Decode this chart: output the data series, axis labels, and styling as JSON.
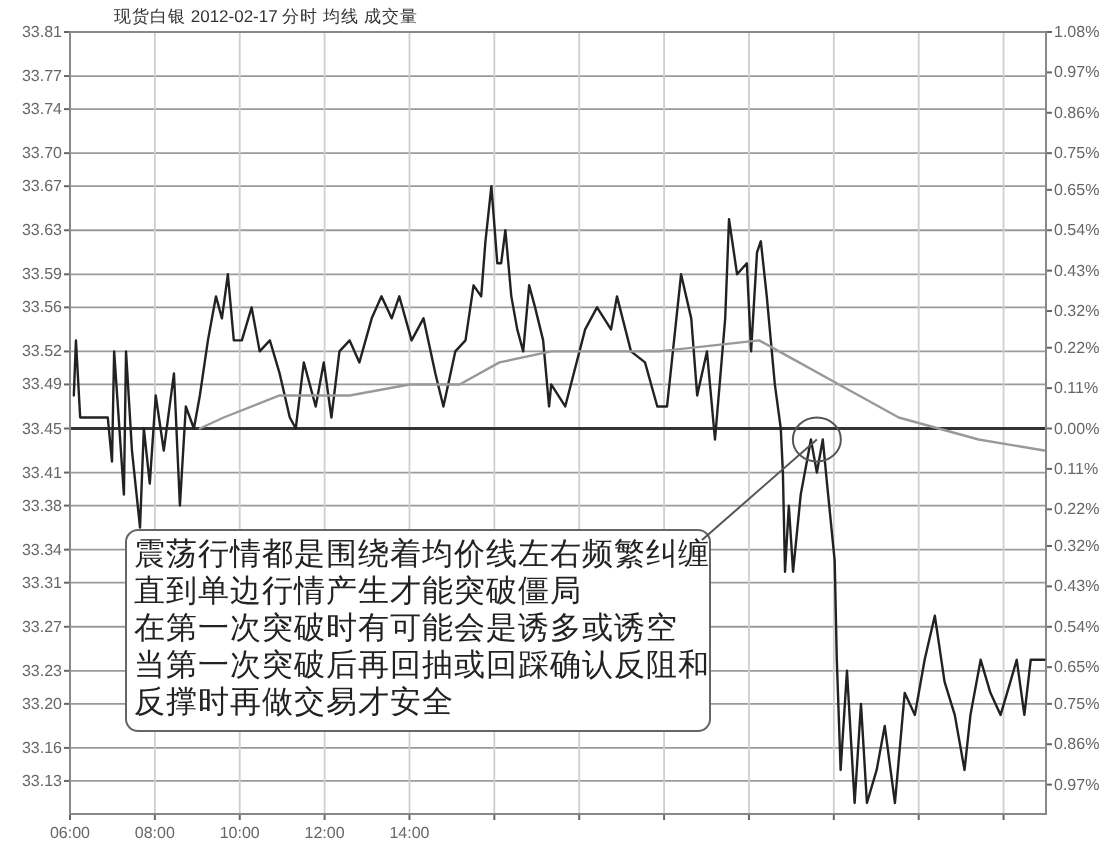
{
  "chart_data": {
    "type": "line",
    "title": "现货白银 2012-02-17 分时 均线 成交量",
    "xlim": [
      6,
      29
    ],
    "ylim": [
      33.1,
      33.81
    ],
    "y2lim": [
      -1.05,
      1.08
    ],
    "xticks": [
      {
        "value": 6,
        "label": "06:00"
      },
      {
        "value": 8,
        "label": "08:00"
      },
      {
        "value": 10,
        "label": "10:00"
      },
      {
        "value": 12,
        "label": "12:00"
      },
      {
        "value": 14,
        "label": "14:00"
      },
      {
        "value": 16,
        "label": null
      },
      {
        "value": 18,
        "label": null
      },
      {
        "value": 20,
        "label": null
      },
      {
        "value": 22,
        "label": null
      },
      {
        "value": 24,
        "label": null
      },
      {
        "value": 26,
        "label": null
      },
      {
        "value": 28,
        "label": null
      }
    ],
    "yticks": [
      33.13,
      33.16,
      {
        "value": 33.2,
        "label": "33.20"
      },
      33.23,
      33.27,
      33.31,
      33.34,
      33.38,
      33.41,
      33.45,
      33.49,
      33.52,
      33.56,
      33.59,
      33.63,
      33.67,
      {
        "value": 33.7,
        "label": "33.70"
      },
      33.74,
      33.77,
      33.81
    ],
    "y2ticks": [
      {
        "value": -0.97,
        "label": "0.97%"
      },
      {
        "value": -0.86,
        "label": "0.86%"
      },
      {
        "value": -0.75,
        "label": "0.75%"
      },
      {
        "value": -0.65,
        "label": "0.65%"
      },
      {
        "value": -0.54,
        "label": "0.54%"
      },
      {
        "value": -0.43,
        "label": "0.43%"
      },
      {
        "value": -0.32,
        "label": "0.32%"
      },
      {
        "value": -0.22,
        "label": "0.22%"
      },
      {
        "value": -0.11,
        "label": "0.11%"
      },
      {
        "value": 0,
        "label": "0.00%"
      },
      {
        "value": 0.11,
        "label": "0.11%"
      },
      {
        "value": 0.22,
        "label": "0.22%"
      },
      {
        "value": 0.32,
        "label": "0.32%"
      },
      {
        "value": 0.43,
        "label": "0.43%"
      },
      {
        "value": 0.54,
        "label": "0.54%"
      },
      {
        "value": 0.65,
        "label": "0.65%"
      },
      {
        "value": 0.75,
        "label": "0.75%"
      },
      {
        "value": 0.86,
        "label": "0.86%"
      },
      {
        "value": 0.97,
        "label": "0.97%"
      },
      {
        "value": 1.08,
        "label": "1.08%"
      }
    ],
    "grid": true,
    "ref_lines": [
      {
        "axis": "y",
        "value": 33.45,
        "color": "#333333"
      }
    ],
    "series": [
      {
        "color": "#222222",
        "x": [
          6.09,
          6.14,
          6.24,
          6.89,
          6.99,
          7.04,
          7.27,
          7.32,
          7.46,
          7.65,
          7.74,
          7.88,
          8.02,
          8.21,
          8.45,
          8.59,
          8.73,
          8.92,
          9.06,
          9.25,
          9.44,
          9.58,
          9.72,
          9.86,
          10.05,
          10.28,
          10.47,
          10.71,
          10.94,
          11.18,
          11.32,
          11.51,
          11.79,
          11.98,
          12.16,
          12.35,
          12.59,
          12.82,
          13.11,
          13.34,
          13.58,
          13.76,
          14.05,
          14.33,
          14.61,
          14.8,
          15.08,
          15.32,
          15.51,
          15.69,
          15.79,
          15.93,
          16.07,
          16.16,
          16.26,
          16.4,
          16.54,
          16.68,
          16.82,
          16.96,
          17.15,
          17.29,
          17.34,
          17.67,
          18.14,
          18.42,
          18.75,
          18.89,
          19.22,
          19.55,
          19.84,
          20.07,
          20.4,
          20.64,
          20.78,
          21.01,
          21.2,
          21.44,
          21.53,
          21.72,
          21.95,
          22.05,
          22.19,
          22.28,
          22.42,
          22.61,
          22.75,
          22.8,
          22.85,
          22.94,
          23.04,
          23.22,
          23.46,
          23.6,
          23.74,
          23.84,
          24.02,
          24.07,
          24.16,
          24.31,
          24.49,
          24.64,
          24.78,
          25.01,
          25.2,
          25.44,
          25.67,
          25.91,
          26.14,
          26.38,
          26.61,
          26.85,
          27.08,
          27.22,
          27.46,
          27.69,
          27.93,
          28.16,
          28.31,
          28.49,
          28.64,
          28.96
        ],
        "values": [
          33.48,
          33.53,
          33.46,
          33.46,
          33.42,
          33.52,
          33.39,
          33.52,
          33.43,
          33.36,
          33.45,
          33.4,
          33.48,
          33.43,
          33.5,
          33.38,
          33.47,
          33.45,
          33.48,
          33.53,
          33.57,
          33.55,
          33.59,
          33.53,
          33.53,
          33.56,
          33.52,
          33.53,
          33.5,
          33.46,
          33.45,
          33.51,
          33.47,
          33.51,
          33.46,
          33.52,
          33.53,
          33.51,
          33.55,
          33.57,
          33.55,
          33.57,
          33.53,
          33.55,
          33.5,
          33.47,
          33.52,
          33.53,
          33.58,
          33.57,
          33.62,
          33.67,
          33.6,
          33.6,
          33.63,
          33.57,
          33.54,
          33.52,
          33.58,
          33.56,
          33.53,
          33.47,
          33.49,
          33.47,
          33.54,
          33.56,
          33.54,
          33.57,
          33.52,
          33.51,
          33.47,
          33.47,
          33.59,
          33.55,
          33.48,
          33.52,
          33.44,
          33.55,
          33.64,
          33.59,
          33.6,
          33.52,
          33.61,
          33.62,
          33.57,
          33.49,
          33.45,
          33.41,
          33.32,
          33.38,
          33.32,
          33.39,
          33.44,
          33.41,
          33.44,
          33.4,
          33.33,
          33.24,
          33.14,
          33.23,
          33.11,
          33.2,
          33.11,
          33.14,
          33.18,
          33.11,
          33.21,
          33.19,
          33.24,
          33.28,
          33.22,
          33.19,
          33.14,
          33.19,
          33.24,
          33.21,
          33.19,
          33.22,
          33.24,
          33.19,
          33.24,
          33.24
        ]
      },
      {
        "color": "#999999",
        "x": [
          9.06,
          9.62,
          10.94,
          12.59,
          14.0,
          15.18,
          16.12,
          17.34,
          17.99,
          19.88,
          22.24,
          22.71,
          23.18,
          24.12,
          25.53,
          26.47,
          27.41,
          28.96
        ],
        "values": [
          33.45,
          33.46,
          33.48,
          33.48,
          33.49,
          33.49,
          33.51,
          33.52,
          33.52,
          33.52,
          33.53,
          33.52,
          33.51,
          33.49,
          33.46,
          33.45,
          33.44,
          33.43
        ]
      }
    ],
    "annotations": [
      {
        "text": "震荡行情都是围绕着均价线左右频繁纠缠",
        "x": 23.6,
        "y": 33.44
      },
      "直到单边行情产生才能突破僵局",
      "在第一次突破时有可能会是诱多或诱空",
      "当第一次突破后再回抽或回踩确认反阻和",
      "反撑时再做交易才安全"
    ]
  }
}
